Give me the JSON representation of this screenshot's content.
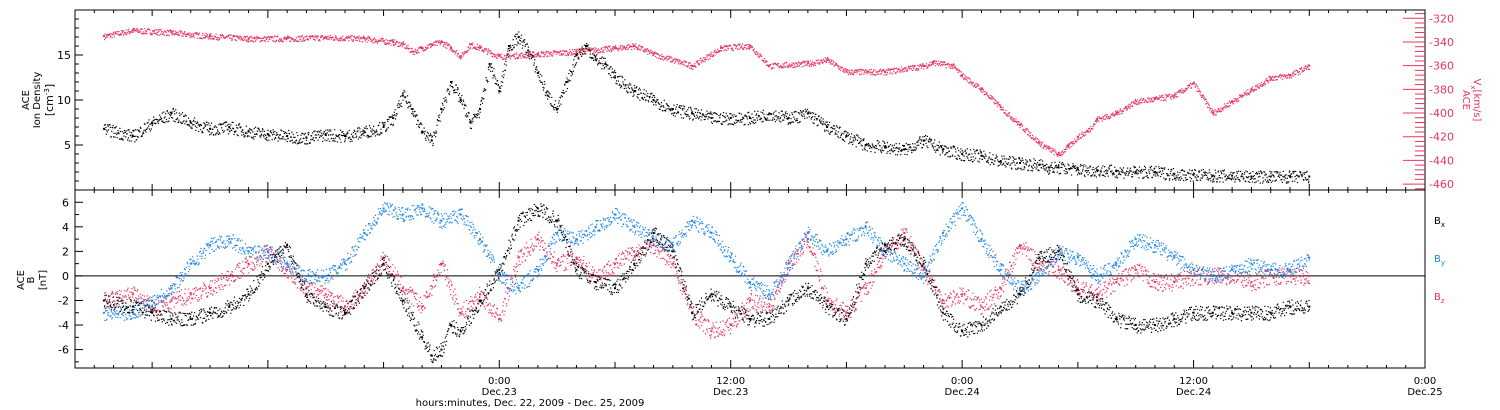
{
  "colors": {
    "black": "#000000",
    "red": "#e8345e",
    "blue": "#1a86e8"
  },
  "chart_data": [
    {
      "type": "scatter",
      "panel": "top",
      "left_axis": {
        "label_lines": [
          "ACE",
          "Ion Density"
        ],
        "unit_lines": [
          "[cm",
          "-3",
          "]"
        ],
        "ylim": [
          0,
          20
        ],
        "ticks": [
          5,
          10,
          15
        ],
        "tick_labels": [
          "5",
          "10",
          "15"
        ]
      },
      "right_axis": {
        "label_lines": [
          "ACE",
          "V",
          "x",
          "[km/s]"
        ],
        "ylim": [
          -465,
          -313
        ],
        "ticks": [
          -320,
          -340,
          -360,
          -380,
          -400,
          -420,
          -440,
          -460
        ],
        "tick_labels": [
          "-320",
          "-340",
          "-360",
          "-380",
          "-400",
          "-420",
          "-440",
          "-460"
        ]
      },
      "series": [
        {
          "color": "#000000",
          "axis": "left",
          "x_hours": [
            -20.5,
            -19,
            -18,
            -17,
            -16,
            -15,
            -14,
            -13,
            -12,
            -11,
            -10,
            -9,
            -8,
            -7,
            -6,
            -5.5,
            -5,
            -4.5,
            -4,
            -3.5,
            -3,
            -2.5,
            -2,
            -1.5,
            -1,
            -0.5,
            0,
            0.5,
            1,
            1.5,
            2,
            2.5,
            3,
            3.5,
            4,
            4.5,
            5,
            5.5,
            6,
            7,
            8,
            9,
            10,
            11,
            12,
            13,
            14,
            15,
            16,
            17,
            18,
            19,
            20,
            21,
            22,
            23,
            24,
            25,
            26,
            27,
            28,
            28.5,
            29,
            30,
            31,
            32,
            33,
            34,
            35,
            36,
            37,
            38,
            39,
            40,
            41,
            42
          ],
          "values": [
            6.8,
            6,
            7.5,
            8.5,
            7.5,
            6.8,
            7,
            6.5,
            6.2,
            6,
            5.8,
            6.2,
            6,
            6.5,
            7,
            8,
            10.5,
            9,
            6.5,
            5.5,
            9,
            12,
            10,
            7.5,
            9,
            14,
            11,
            16,
            17,
            15.5,
            13,
            10.5,
            9,
            12,
            15,
            16,
            14.5,
            14,
            12.5,
            11,
            10,
            9,
            8.5,
            8,
            8,
            8,
            8.5,
            8,
            8.5,
            7,
            6,
            5,
            4.8,
            4.5,
            5.5,
            4.5,
            4,
            3.8,
            3.2,
            3,
            2.8,
            2.5,
            2.5,
            2.3,
            2.2,
            2.1,
            2,
            2,
            1.8,
            1.7,
            1.6,
            1.6,
            1.5,
            1.5,
            1.5,
            1.5
          ]
        },
        {
          "color": "#e8345e",
          "axis": "right",
          "x_hours": [
            -20.5,
            -19,
            -17,
            -15,
            -13,
            -11,
            -9,
            -7,
            -5.5,
            -5,
            -4.5,
            -4,
            -3.5,
            -3,
            -2.5,
            -2,
            -1.5,
            -1,
            0,
            2,
            4,
            6,
            7,
            8,
            10,
            11.5,
            13,
            14,
            16,
            17,
            18,
            20,
            22,
            22.5,
            23.5,
            24,
            25,
            26,
            27,
            28,
            28.5,
            29,
            29.5,
            30,
            30.5,
            31,
            32,
            32.5,
            33,
            34,
            35,
            36,
            37,
            38,
            39,
            40,
            41,
            42
          ],
          "values": [
            -335,
            -330,
            -332,
            -335,
            -337,
            -337,
            -336,
            -337,
            -340,
            -342,
            -348,
            -345,
            -342,
            -340,
            -345,
            -352,
            -342,
            -345,
            -352,
            -350,
            -348,
            -345,
            -343,
            -350,
            -360,
            -345,
            -343,
            -360,
            -358,
            -355,
            -365,
            -365,
            -360,
            -357,
            -360,
            -368,
            -380,
            -395,
            -410,
            -425,
            -430,
            -435,
            -428,
            -420,
            -415,
            -405,
            -400,
            -395,
            -390,
            -388,
            -385,
            -375,
            -400,
            -390,
            -380,
            -370,
            -368,
            -360
          ]
        }
      ]
    },
    {
      "type": "scatter",
      "panel": "bottom",
      "left_axis": {
        "label_lines": [
          "ACE",
          "B",
          "[nT]"
        ],
        "ylim": [
          -7.5,
          7
        ],
        "ticks": [
          6,
          4,
          2,
          0,
          -2,
          -4,
          -6
        ],
        "tick_labels": [
          "6",
          "4",
          "2",
          "0",
          "-2",
          "-4",
          "-6"
        ]
      },
      "series": [
        {
          "name": "B",
          "sub": "x",
          "color": "#000000",
          "x_hours": [
            -20.5,
            -19,
            -18,
            -17,
            -16,
            -15,
            -14,
            -13,
            -12,
            -11,
            -10,
            -9,
            -8,
            -7,
            -6,
            -5,
            -4,
            -3.5,
            -3,
            -2.5,
            -2,
            -1,
            0,
            1,
            2,
            3,
            4,
            5,
            6,
            7,
            8,
            9,
            10,
            11,
            12,
            13,
            14,
            15,
            16,
            17,
            18,
            19,
            20,
            21,
            22,
            23,
            24,
            25,
            26,
            27,
            28,
            29,
            30,
            31,
            32,
            33,
            34,
            35,
            36,
            37,
            38,
            39,
            40,
            41,
            42
          ],
          "values": [
            -2,
            -2.5,
            -3,
            -3.5,
            -3.5,
            -3,
            -2.5,
            -1.5,
            1,
            2.5,
            -1.5,
            -2.5,
            -3,
            -1,
            1,
            -2,
            -5,
            -6.5,
            -6,
            -4,
            -4.5,
            -2,
            0.5,
            4.5,
            5.5,
            4.5,
            0.5,
            -0.5,
            -1,
            1,
            3.5,
            2,
            -3,
            -1.5,
            -2.5,
            -3.5,
            -3.5,
            -2,
            -1,
            -2.5,
            -3.5,
            1,
            2.5,
            3,
            1,
            -3,
            -4.5,
            -4,
            -2.5,
            -1.5,
            1.5,
            2,
            -1.5,
            -2,
            -3.5,
            -4,
            -4,
            -3.5,
            -3,
            -3,
            -3,
            -3,
            -3,
            -2.5,
            -2.5
          ]
        },
        {
          "name": "B",
          "sub": "y",
          "color": "#1a86e8",
          "x_hours": [
            -20.5,
            -19,
            -18,
            -17,
            -16,
            -15,
            -14,
            -13,
            -12,
            -11,
            -10,
            -9,
            -8,
            -7,
            -6,
            -5,
            -4,
            -3,
            -2,
            -1,
            0,
            1,
            2,
            3,
            4,
            5,
            6,
            7,
            8,
            9,
            10,
            11,
            12,
            13,
            14,
            15,
            16,
            17,
            18,
            19,
            20,
            21,
            22,
            23,
            24,
            25,
            26,
            27,
            28,
            29,
            30,
            31,
            32,
            33,
            34,
            35,
            36,
            37,
            38,
            39,
            40,
            41,
            42
          ],
          "values": [
            -3,
            -3,
            -2,
            -1,
            1,
            2.5,
            3,
            2,
            2,
            1,
            0,
            0,
            1,
            3.5,
            5.5,
            5,
            5.5,
            4.5,
            5,
            3,
            0,
            -1,
            0.5,
            3.5,
            3,
            4,
            5,
            4,
            3,
            2.5,
            4.5,
            3.5,
            1.5,
            -0.5,
            -1.5,
            1,
            3.5,
            2,
            3,
            4,
            2,
            1,
            0,
            3.5,
            5.5,
            3,
            0.5,
            -1,
            0,
            2,
            1.5,
            0,
            1,
            3,
            2.5,
            1.5,
            0.5,
            0,
            0.5,
            1,
            0.5,
            0.5,
            1.5
          ]
        },
        {
          "name": "B",
          "sub": "z",
          "color": "#e8345e",
          "x_hours": [
            -20.5,
            -19,
            -18,
            -17,
            -16,
            -15,
            -14,
            -13,
            -12,
            -11,
            -10,
            -9,
            -8,
            -7,
            -6,
            -5,
            -4,
            -3,
            -2,
            -1,
            0,
            1,
            2,
            3,
            4,
            5,
            6,
            7,
            8,
            9,
            10,
            11,
            12,
            13,
            14,
            15,
            16,
            17,
            18,
            19,
            20,
            21,
            22,
            23,
            24,
            25,
            26,
            27,
            28,
            29,
            30,
            31,
            32,
            33,
            34,
            35,
            36,
            37,
            38,
            39,
            40,
            41,
            42
          ],
          "values": [
            -2,
            -1.5,
            -2.5,
            -2,
            -1.5,
            -1,
            0,
            1,
            2,
            0.5,
            -1,
            -1.5,
            -2.5,
            -1,
            1.5,
            -1,
            -2.5,
            1,
            -3,
            -1.5,
            -3.5,
            1.5,
            3,
            1,
            1.5,
            0,
            1,
            2,
            2.5,
            1,
            -3,
            -4.5,
            -4,
            -2,
            -2.5,
            1,
            3,
            -2,
            -3,
            -1,
            2,
            3.5,
            0.5,
            -2,
            -1.5,
            -2.5,
            -1,
            2.5,
            1,
            0.5,
            -1,
            -1.5,
            -0.5,
            0.5,
            -0.5,
            -0.5,
            0,
            0,
            0,
            -0.5,
            0,
            0,
            0
          ]
        }
      ]
    }
  ],
  "x_axis": {
    "title": "hours:minutes, Dec. 22, 2009 - Dec. 25, 2009",
    "range_hours": [
      -22,
      48
    ],
    "major": [
      {
        "hour": 0,
        "time": "0:00",
        "date": "Dec.23"
      },
      {
        "hour": 12,
        "time": "12:00",
        "date": "Dec.23"
      },
      {
        "hour": 24,
        "time": "0:00",
        "date": "Dec.24"
      },
      {
        "hour": 36,
        "time": "12:00",
        "date": "Dec.24"
      },
      {
        "hour": 48,
        "time": "0:00",
        "date": "Dec.25"
      }
    ]
  },
  "legend": [
    {
      "main": "B",
      "sub": "x",
      "color": "#000000"
    },
    {
      "main": "B",
      "sub": "y",
      "color": "#1a86e8"
    },
    {
      "main": "B",
      "sub": "z",
      "color": "#e8345e"
    }
  ]
}
